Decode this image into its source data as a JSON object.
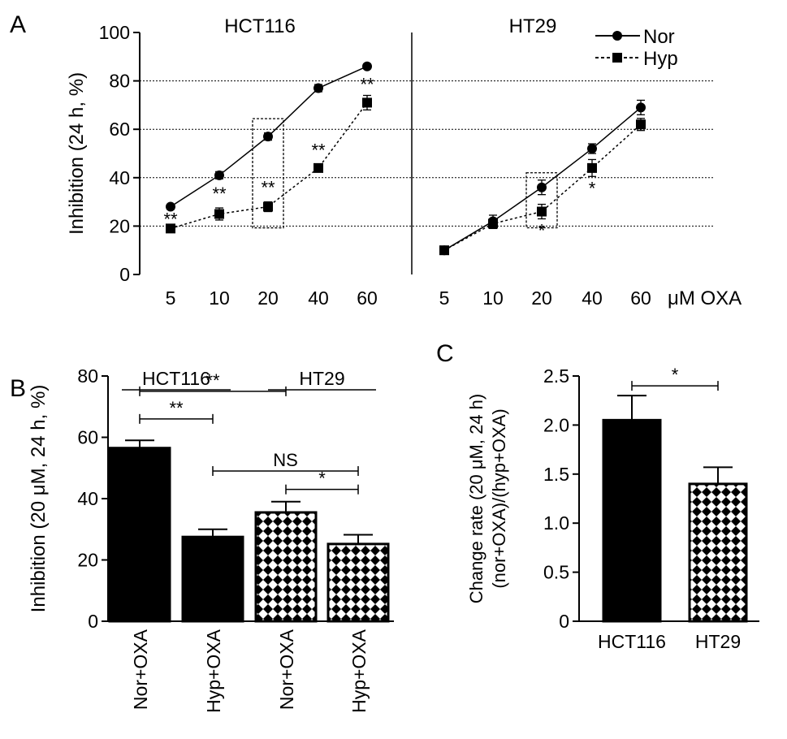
{
  "panels": {
    "A": {
      "letter": "A"
    },
    "B": {
      "letter": "B"
    },
    "C": {
      "letter": "C"
    }
  },
  "chart_data": [
    {
      "panel": "A",
      "type": "line",
      "ylabel": "Inhibition (24 h, %)",
      "xlabel": "μM OXA",
      "ylim": [
        0,
        100
      ],
      "yticks": [
        "0",
        "20",
        "40",
        "60",
        "80",
        "100"
      ],
      "grid_y": [
        20,
        40,
        60,
        80
      ],
      "categories": [
        "5",
        "10",
        "20",
        "40",
        "60"
      ],
      "legend": {
        "position": "top-right",
        "entries": [
          "Nor",
          "Hyp"
        ]
      },
      "groups": [
        {
          "title": "HCT116",
          "series": [
            {
              "name": "Nor",
              "values": [
                28,
                41,
                57,
                77,
                86
              ],
              "errors": [
                1,
                1.5,
                1.5,
                1.5,
                1
              ]
            },
            {
              "name": "Hyp",
              "values": [
                19,
                25,
                28,
                44,
                71
              ],
              "errors": [
                1.5,
                2.5,
                2,
                1.5,
                3
              ]
            }
          ],
          "significance": [
            "**",
            "**",
            "**",
            "**",
            "**"
          ],
          "highlight_category": "20"
        },
        {
          "title": "HT29",
          "series": [
            {
              "name": "Nor",
              "values": [
                10,
                22,
                36,
                52,
                69
              ],
              "errors": [
                1,
                2.5,
                3,
                2,
                3
              ]
            },
            {
              "name": "Hyp",
              "values": [
                10,
                21,
                26,
                44,
                62
              ],
              "errors": [
                1,
                2,
                3,
                3.5,
                2.5
              ]
            }
          ],
          "significance": [
            "",
            "",
            "*",
            "*",
            ""
          ],
          "highlight_category": "20"
        }
      ]
    },
    {
      "panel": "B",
      "type": "bar",
      "ylabel": "Inhibition (20 μM, 24 h, %)",
      "ylim": [
        0,
        80
      ],
      "yticks": [
        "0",
        "20",
        "40",
        "60",
        "80"
      ],
      "categories": [
        "Nor+OXA",
        "Hyp+OXA",
        "Nor+OXA",
        "Hyp+OXA"
      ],
      "values": [
        56.5,
        27.5,
        35.5,
        25.2
      ],
      "errors": [
        2.5,
        2.5,
        3.5,
        3
      ],
      "fills": [
        "solid",
        "solid",
        "checker",
        "checker"
      ],
      "group_labels": [
        {
          "text": "HCT116",
          "from": 0,
          "to": 1
        },
        {
          "text": "HT29",
          "from": 2,
          "to": 3
        }
      ],
      "comparisons": [
        {
          "from": 0,
          "to": 2,
          "label": "**",
          "y": 75
        },
        {
          "from": 0,
          "to": 1,
          "label": "**",
          "y": 66
        },
        {
          "from": 1,
          "to": 3,
          "label": "NS",
          "y": 49
        },
        {
          "from": 2,
          "to": 3,
          "label": "*",
          "y": 43
        }
      ]
    },
    {
      "panel": "C",
      "type": "bar",
      "ylabel_lines": [
        "Change rate (20 μM, 24 h)",
        "(nor+OXA)/(hyp+OXA)"
      ],
      "ylim": [
        0,
        2.5
      ],
      "yticks": [
        "0",
        "0.5",
        "1.0",
        "1.5",
        "2.0",
        "2.5"
      ],
      "categories": [
        "HCT116",
        "HT29"
      ],
      "values": [
        2.05,
        1.4
      ],
      "errors": [
        0.25,
        0.17
      ],
      "fills": [
        "solid",
        "checker"
      ],
      "comparisons": [
        {
          "from": 0,
          "to": 1,
          "label": "*",
          "y": 2.4
        }
      ]
    }
  ]
}
